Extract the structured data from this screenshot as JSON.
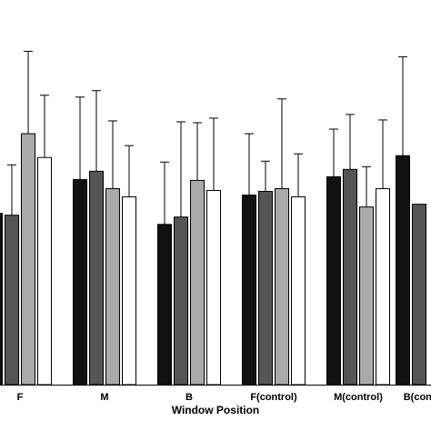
{
  "chart_data": {
    "type": "bar",
    "xlabel": "Window Position",
    "ylabel": "",
    "title": "",
    "categories": [
      "F",
      "M",
      "B",
      "F(control)",
      "M(control)",
      "B(control)"
    ],
    "ylim": [
      0,
      420
    ],
    "grid": false,
    "series": [
      {
        "color": "#111111",
        "values": [
          187,
          224,
          175,
          207,
          227,
          250
        ],
        "errors": [
          null,
          90,
          68,
          67,
          52,
          108
        ]
      },
      {
        "color": "#555555",
        "values": [
          185,
          233,
          183,
          211,
          235,
          197
        ],
        "errors": [
          55,
          88,
          104,
          33,
          60,
          null
        ]
      },
      {
        "color": "#aaaaaa",
        "values": [
          274,
          214,
          223,
          214,
          194,
          null
        ],
        "errors": [
          90,
          74,
          63,
          98,
          44,
          null
        ]
      },
      {
        "color": "#ffffff",
        "values": [
          248,
          205,
          212,
          205,
          214,
          null
        ],
        "errors": [
          68,
          56,
          79,
          47,
          75,
          null
        ]
      }
    ]
  }
}
